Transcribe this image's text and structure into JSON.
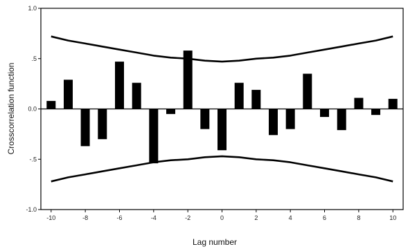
{
  "chart_data": {
    "type": "bar",
    "xlabel": "Lag number",
    "ylabel": "Crosscorrelation function",
    "ylim": [
      -1.0,
      1.0
    ],
    "xlim": [
      -10.6,
      10.6
    ],
    "y_ticks": [
      "1.0",
      ".5",
      "0.0",
      "-.5",
      "-1.0"
    ],
    "y_tick_values": [
      1.0,
      0.5,
      0.0,
      -0.5,
      -1.0
    ],
    "x_ticks": [
      "-10",
      "-8",
      "-6",
      "-4",
      "-2",
      "0",
      "2",
      "4",
      "6",
      "8",
      "10"
    ],
    "x_tick_values": [
      -10,
      -8,
      -6,
      -4,
      -2,
      0,
      2,
      4,
      6,
      8,
      10
    ],
    "x": [
      -10,
      -9,
      -8,
      -7,
      -6,
      -5,
      -4,
      -3,
      -2,
      -1,
      0,
      1,
      2,
      3,
      4,
      5,
      6,
      7,
      8,
      9,
      10
    ],
    "values": [
      0.08,
      0.29,
      -0.37,
      -0.3,
      0.47,
      0.26,
      -0.54,
      -0.05,
      0.58,
      -0.2,
      -0.41,
      0.26,
      0.19,
      -0.26,
      -0.2,
      0.35,
      -0.08,
      -0.21,
      0.11,
      -0.06,
      0.1
    ],
    "confidence_upper": [
      0.72,
      0.68,
      0.65,
      0.62,
      0.59,
      0.56,
      0.53,
      0.51,
      0.5,
      0.48,
      0.47,
      0.48,
      0.5,
      0.51,
      0.53,
      0.56,
      0.59,
      0.62,
      0.65,
      0.68,
      0.72
    ],
    "confidence_lower": [
      -0.72,
      -0.68,
      -0.65,
      -0.62,
      -0.59,
      -0.56,
      -0.53,
      -0.51,
      -0.5,
      -0.48,
      -0.47,
      -0.48,
      -0.5,
      -0.51,
      -0.53,
      -0.56,
      -0.59,
      -0.62,
      -0.65,
      -0.68,
      -0.72
    ],
    "grid": false,
    "colors": {
      "bars": "#000000",
      "confidence_band": "#000000",
      "axes": "#000000"
    }
  }
}
